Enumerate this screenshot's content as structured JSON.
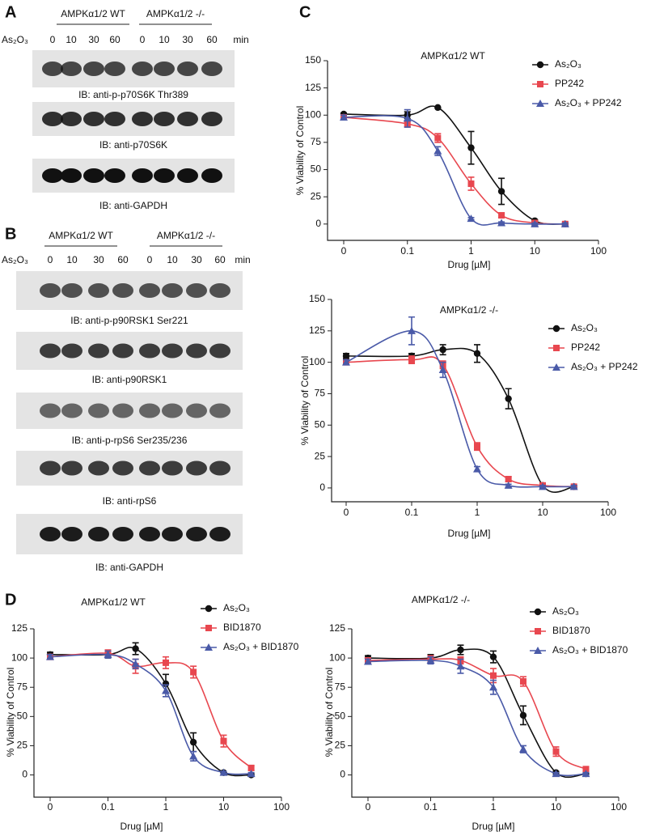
{
  "panel_labels": [
    "A",
    "B",
    "C",
    "D"
  ],
  "blots": [
    {
      "groups": [
        "AMPKα1/2 WT",
        "AMPKα1/2 -/-"
      ],
      "treatment": "As₂O₃",
      "times": [
        0,
        10,
        30,
        60,
        0,
        10,
        30,
        60
      ],
      "unit": "min",
      "labels": [
        "IB: anti-p-p70S6K Thr389",
        "IB: anti-p70S6K",
        "IB: anti-GAPDH"
      ]
    },
    {
      "groups": [
        "AMPKα1/2 WT",
        "AMPKα1/2 -/-"
      ],
      "treatment": "As₂O₃",
      "times": [
        0,
        10,
        30,
        60,
        0,
        10,
        30,
        60
      ],
      "unit": "min",
      "labels": [
        "IB: anti-p-p90RSK1 Ser221",
        "IB: anti-p90RSK1",
        "IB: anti-p-rpS6 Ser235/236",
        "IB: anti-rpS6",
        "IB: anti-GAPDH"
      ]
    }
  ],
  "chart_data": [
    {
      "type": "line",
      "title": "AMPKα1/2 WT",
      "x_label": "Drug [µM]",
      "y_label": "% Viability of Control",
      "log_x": true,
      "x": [
        0.01,
        0.1,
        0.3,
        1,
        3,
        10,
        30
      ],
      "xlim": [
        0.01,
        100
      ],
      "xticks": [
        {
          "value": 0.01,
          "label": "0"
        },
        0.1,
        1,
        10,
        100
      ],
      "ylim": [
        -15,
        150
      ],
      "yticks": [
        0,
        25,
        50,
        75,
        100,
        125,
        150
      ],
      "series": [
        {
          "name": "As₂O₃",
          "color": "#111111",
          "marker": "circle",
          "values": [
            101,
            100,
            107,
            70,
            30,
            3,
            0
          ],
          "errors": [
            1,
            3,
            0,
            15,
            12,
            1,
            1
          ]
        },
        {
          "name": "PP242",
          "color": "#e8474f",
          "marker": "square",
          "values": [
            98,
            92,
            79,
            37,
            8,
            1,
            0
          ],
          "errors": [
            2,
            3,
            4,
            6,
            2,
            1,
            1
          ]
        },
        {
          "name": "As₂O₃ + PP242",
          "color": "#4a5aa8",
          "marker": "triangle",
          "values": [
            98,
            97,
            67,
            5,
            1,
            0,
            0
          ],
          "errors": [
            2,
            8,
            4,
            1,
            1,
            1,
            1
          ]
        }
      ]
    },
    {
      "type": "line",
      "title": "AMPKα1/2 -/-",
      "x_label": "Drug [µM]",
      "y_label": "% Viability of Control",
      "log_x": true,
      "x": [
        0.01,
        0.1,
        0.3,
        1,
        3,
        10,
        30
      ],
      "xlim": [
        0.01,
        100
      ],
      "xticks": [
        {
          "value": 0.01,
          "label": "0"
        },
        0.1,
        1,
        10,
        100
      ],
      "ylim": [
        -11,
        150
      ],
      "yticks": [
        0,
        25,
        50,
        75,
        100,
        125,
        150
      ],
      "series": [
        {
          "name": "As₂O₃",
          "color": "#111111",
          "marker": "circle",
          "values": [
            105,
            105,
            110,
            107,
            71,
            2,
            1
          ],
          "errors": [
            2,
            2,
            4,
            7,
            8,
            1,
            1
          ]
        },
        {
          "name": "PP242",
          "color": "#e8474f",
          "marker": "square",
          "values": [
            100,
            102,
            98,
            33,
            7,
            2,
            1
          ],
          "errors": [
            2,
            3,
            3,
            3,
            2,
            1,
            1
          ]
        },
        {
          "name": "As₂O₃ + PP242",
          "color": "#4a5aa8",
          "marker": "triangle",
          "values": [
            100,
            125,
            94,
            15,
            2,
            1,
            1
          ],
          "errors": [
            2,
            11,
            6,
            2,
            1,
            1,
            1
          ]
        }
      ]
    },
    {
      "type": "line",
      "title": "AMPKα1/2 WT",
      "x_label": "Drug [µM]",
      "y_label": "% Viability of Control",
      "log_x": true,
      "x": [
        0.01,
        0.1,
        0.3,
        1,
        3,
        10,
        30
      ],
      "xlim": [
        0.01,
        100
      ],
      "xticks": [
        {
          "value": 0.01,
          "label": "0"
        },
        0.1,
        1,
        10,
        100
      ],
      "ylim": [
        -19,
        125
      ],
      "yticks": [
        0,
        25,
        50,
        75,
        100,
        125
      ],
      "series": [
        {
          "name": "As₂O₃",
          "color": "#111111",
          "marker": "circle",
          "values": [
            103,
            103,
            108,
            78,
            28,
            2,
            0
          ],
          "errors": [
            2,
            3,
            5,
            8,
            8,
            1,
            1
          ]
        },
        {
          "name": "BID1870",
          "color": "#e8474f",
          "marker": "square",
          "values": [
            101,
            104,
            93,
            96,
            88,
            29,
            6
          ],
          "errors": [
            2,
            3,
            6,
            5,
            5,
            5,
            2
          ]
        },
        {
          "name": "As₂O₃ + BID1870",
          "color": "#4a5aa8",
          "marker": "triangle",
          "values": [
            101,
            103,
            95,
            72,
            16,
            2,
            1
          ],
          "errors": [
            2,
            3,
            4,
            5,
            4,
            1,
            1
          ]
        }
      ]
    },
    {
      "type": "line",
      "title": "AMPKα1/2 -/-",
      "x_label": "Drug [µM]",
      "y_label": "% Viability of Control",
      "log_x": true,
      "x": [
        0.01,
        0.1,
        0.3,
        1,
        3,
        10,
        30
      ],
      "xlim": [
        0.01,
        100
      ],
      "xticks": [
        {
          "value": 0.01,
          "label": "0"
        },
        0.1,
        1,
        10,
        100
      ],
      "ylim": [
        -19,
        125
      ],
      "yticks": [
        0,
        25,
        50,
        75,
        100,
        125
      ],
      "series": [
        {
          "name": "As₂O₃",
          "color": "#111111",
          "marker": "circle",
          "values": [
            100,
            100,
            107,
            101,
            51,
            2,
            1
          ],
          "errors": [
            2,
            3,
            4,
            5,
            8,
            1,
            1
          ]
        },
        {
          "name": "BID1870",
          "color": "#e8474f",
          "marker": "square",
          "values": [
            98,
            99,
            98,
            85,
            80,
            20,
            5
          ],
          "errors": [
            2,
            3,
            3,
            6,
            4,
            4,
            2
          ]
        },
        {
          "name": "As₂O₃ + BID1870",
          "color": "#4a5aa8",
          "marker": "triangle",
          "values": [
            97,
            98,
            93,
            75,
            22,
            1,
            1
          ],
          "errors": [
            2,
            3,
            6,
            6,
            3,
            1,
            1
          ]
        }
      ]
    }
  ]
}
